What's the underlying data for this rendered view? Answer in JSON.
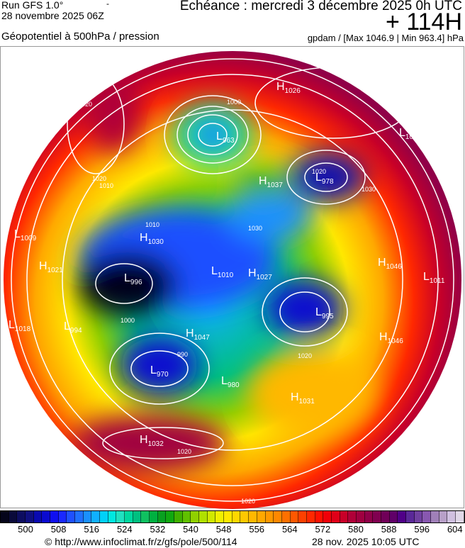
{
  "header": {
    "run": "Run GFS 1.0°",
    "run_date": "28 novembre 2025 06Z",
    "dash": "-",
    "echeance": "Echéance : mercredi 3 décembre 2025 0h UTC",
    "offset": "+ 114H",
    "variable": "Géopotentiel à 500hPa / pression",
    "units": "gpdam / [Max 1046.9 | Min 963.4] hPa"
  },
  "map": {
    "projection": "polar-stereographic-north",
    "pressure_centers": [
      {
        "type": "H",
        "value": "1026"
      },
      {
        "type": "L",
        "value": "963"
      },
      {
        "type": "L",
        "value": "1001"
      },
      {
        "type": "H",
        "value": "1037"
      },
      {
        "type": "L",
        "value": "978"
      },
      {
        "type": "L",
        "value": "1009"
      },
      {
        "type": "H",
        "value": "1030"
      },
      {
        "type": "H",
        "value": "1021"
      },
      {
        "type": "L",
        "value": "996"
      },
      {
        "type": "L",
        "value": "1010"
      },
      {
        "type": "H",
        "value": "1027"
      },
      {
        "type": "L",
        "value": "995"
      },
      {
        "type": "H",
        "value": "1046"
      },
      {
        "type": "L",
        "value": "1011"
      },
      {
        "type": "L",
        "value": "1018"
      },
      {
        "type": "L",
        "value": "994"
      },
      {
        "type": "H",
        "value": "1047"
      },
      {
        "type": "L",
        "value": "970"
      },
      {
        "type": "L",
        "value": "980"
      },
      {
        "type": "H",
        "value": "1031"
      },
      {
        "type": "H",
        "value": "1032"
      },
      {
        "type": "H",
        "value": "1046"
      }
    ],
    "isobar_labels": [
      "1010",
      "1020",
      "1000",
      "1010",
      "1020",
      "1030",
      "1020",
      "1010",
      "1000",
      "990",
      "1020",
      "1030",
      "1020",
      "1020"
    ]
  },
  "colorbar": {
    "colors": [
      "#05051a",
      "#0a0a3a",
      "#0d0d60",
      "#101080",
      "#0a0ab0",
      "#0a0ad0",
      "#0f0ff0",
      "#1a28ff",
      "#1f50ff",
      "#2070ff",
      "#1a90ff",
      "#10b0ff",
      "#00d0f8",
      "#00e8e0",
      "#20e0c0",
      "#00d8a0",
      "#00c080",
      "#10c060",
      "#00b040",
      "#08a020",
      "#10a810",
      "#40b000",
      "#60c000",
      "#90d000",
      "#b0e000",
      "#d0e800",
      "#f0f000",
      "#ffe800",
      "#ffd800",
      "#ffc800",
      "#ffb800",
      "#ffa800",
      "#ff9800",
      "#ff8800",
      "#ff7000",
      "#ff5800",
      "#ff4000",
      "#ff2800",
      "#ff1000",
      "#f00008",
      "#e00018",
      "#c80028",
      "#b00038",
      "#a00040",
      "#900048",
      "#800050",
      "#700058",
      "#600068",
      "#500088",
      "#5a2898",
      "#7040a0",
      "#8858b0",
      "#a080b8",
      "#b8a0c8",
      "#d0c0e0",
      "#e0d8e8"
    ],
    "ticks": [
      "500",
      "508",
      "516",
      "524",
      "532",
      "540",
      "548",
      "556",
      "564",
      "572",
      "580",
      "588",
      "596",
      "604"
    ]
  },
  "footer": {
    "url": "© http://www.infoclimat.fr/z/gfs/pole/500/114",
    "generated": "28 nov. 2025 10:05 UTC"
  }
}
